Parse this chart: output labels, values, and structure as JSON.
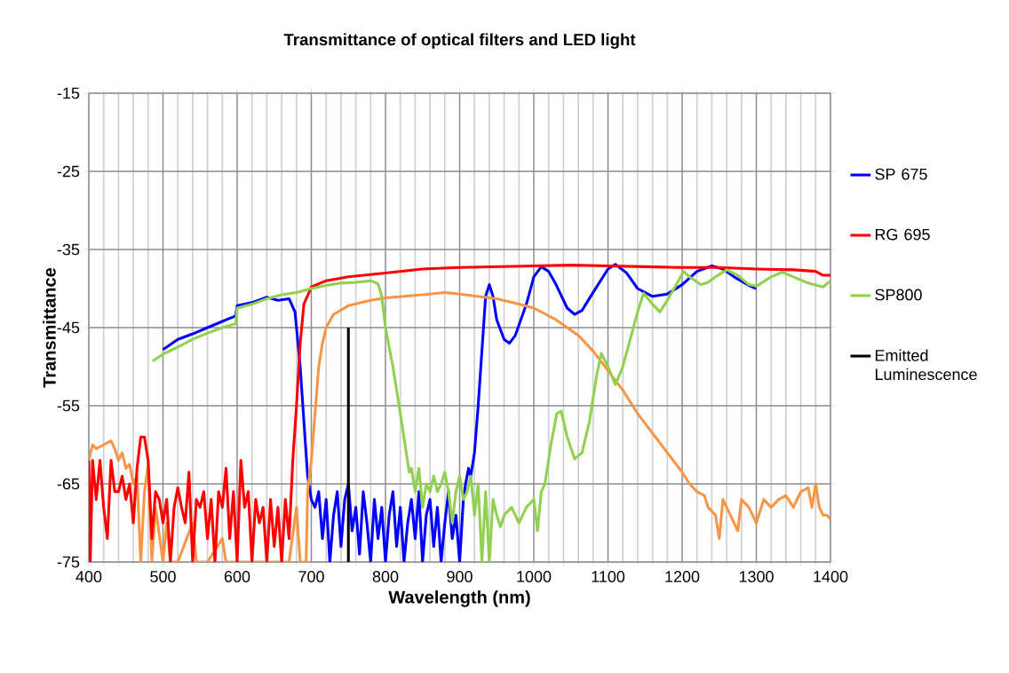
{
  "chart_data": {
    "type": "line",
    "title": "Transmittance of optical filters and LED light",
    "xlabel": "Wavelength (nm)",
    "ylabel": "Transmittance",
    "xlim": [
      400,
      1400
    ],
    "xticks": [
      400,
      500,
      600,
      700,
      800,
      900,
      1000,
      1100,
      1200,
      1300,
      1400
    ],
    "ylim": [
      -75,
      -15
    ],
    "yticks": [
      -75,
      -65,
      -55,
      -45,
      -35,
      -25,
      -15
    ],
    "grid": true,
    "legend": "right",
    "marker": "none",
    "line_style": "solid",
    "series": [
      {
        "name": "SP 675",
        "color": "#0000ff",
        "x": [
          500,
          520,
          540,
          560,
          580,
          598,
          600,
          620,
          640,
          655,
          670,
          678,
          685,
          690,
          695,
          700,
          705,
          710,
          715,
          720,
          725,
          730,
          735,
          740,
          745,
          750,
          755,
          760,
          765,
          770,
          775,
          780,
          785,
          790,
          795,
          800,
          805,
          810,
          815,
          820,
          825,
          830,
          835,
          840,
          845,
          850,
          855,
          860,
          865,
          870,
          875,
          880,
          885,
          890,
          895,
          900,
          905,
          908,
          912,
          915,
          920,
          925,
          930,
          935,
          940,
          945,
          950,
          960,
          967,
          975,
          990,
          1000,
          1010,
          1020,
          1030,
          1045,
          1055,
          1065,
          1080,
          1100,
          1110,
          1125,
          1140,
          1160,
          1180,
          1200,
          1220,
          1240,
          1255,
          1270,
          1290,
          1300
        ],
        "values": [
          -47.8,
          -46.5,
          -45.8,
          -45,
          -44.2,
          -43.5,
          -42.2,
          -41.8,
          -41.1,
          -41.5,
          -41.3,
          -43,
          -50,
          -57,
          -64,
          -67,
          -68,
          -66,
          -72,
          -67,
          -75,
          -69,
          -66,
          -73,
          -67,
          -65,
          -71,
          -68,
          -74,
          -66,
          -70,
          -75,
          -67,
          -72,
          -68,
          -75,
          -69,
          -66,
          -73,
          -68,
          -75,
          -70,
          -67,
          -72,
          -66,
          -75,
          -69,
          -67,
          -73,
          -68,
          -75,
          -70,
          -66,
          -72,
          -69,
          -75,
          -67,
          -65,
          -63,
          -64,
          -61,
          -55,
          -48,
          -41,
          -39.5,
          -41,
          -44,
          -46.5,
          -47,
          -46,
          -42,
          -38.5,
          -37.2,
          -37.8,
          -39.5,
          -42.5,
          -43.3,
          -42.8,
          -40.5,
          -37.5,
          -36.9,
          -38,
          -40,
          -41,
          -40.7,
          -39.5,
          -37.8,
          -37.1,
          -37.5,
          -38.5,
          -39.6,
          -40
        ]
      },
      {
        "color": "#f79646",
        "x": [
          400,
          405,
          410,
          420,
          430,
          435,
          440,
          445,
          450,
          455,
          460,
          465,
          470,
          475,
          480,
          485,
          490,
          500,
          505,
          510,
          520,
          540,
          545,
          560,
          580,
          585,
          610,
          630,
          650,
          670,
          680,
          685,
          693,
          695,
          700,
          705,
          710,
          715,
          720,
          730,
          750,
          780,
          800,
          850,
          880,
          900,
          950,
          980,
          1000,
          1030,
          1060,
          1080,
          1100,
          1120,
          1140,
          1160,
          1180,
          1200,
          1210,
          1220,
          1230,
          1235,
          1245,
          1250,
          1255,
          1265,
          1275,
          1280,
          1290,
          1300,
          1310,
          1320,
          1330,
          1340,
          1350,
          1360,
          1370,
          1375,
          1380,
          1385,
          1390,
          1395,
          1400
        ],
        "values": [
          -62,
          -60,
          -60.5,
          -60,
          -59.5,
          -60.5,
          -62,
          -61,
          -63,
          -62.5,
          -65,
          -64,
          -75,
          -66,
          -62.5,
          -75,
          -68,
          -75,
          -70,
          -75,
          -75,
          -70,
          -75,
          -75,
          -72,
          -75,
          -75,
          -75,
          -75,
          -75,
          -68,
          -75,
          -75,
          -66,
          -62,
          -56,
          -50,
          -47,
          -45,
          -43.3,
          -42.2,
          -41.5,
          -41.2,
          -40.8,
          -40.5,
          -40.7,
          -41.3,
          -42,
          -42.5,
          -44,
          -46,
          -48,
          -50.5,
          -53,
          -56,
          -58.5,
          -61,
          -63.5,
          -65,
          -66,
          -66.5,
          -68,
          -69,
          -72,
          -67,
          -69,
          -71,
          -67,
          -68,
          -70,
          -67,
          -68,
          -67,
          -66.5,
          -68,
          -66,
          -65.5,
          -68,
          -65,
          -68,
          -69,
          -69,
          -69.5
        ]
      },
      {
        "name": "RG 695",
        "color": "#ff0000",
        "x": [
          400,
          402,
          405,
          410,
          415,
          420,
          425,
          430,
          435,
          440,
          445,
          450,
          455,
          460,
          465,
          470,
          475,
          480,
          485,
          490,
          495,
          500,
          505,
          510,
          515,
          520,
          525,
          530,
          535,
          540,
          545,
          550,
          555,
          560,
          565,
          570,
          575,
          580,
          585,
          590,
          595,
          600,
          605,
          610,
          615,
          620,
          625,
          630,
          635,
          640,
          645,
          650,
          655,
          660,
          665,
          670,
          675,
          680,
          685,
          690,
          700,
          720,
          750,
          800,
          850,
          900,
          950,
          1000,
          1050,
          1100,
          1150,
          1200,
          1250,
          1300,
          1350,
          1380,
          1390,
          1400
        ],
        "values": [
          -62,
          -75,
          -62,
          -67,
          -62,
          -68,
          -72,
          -62,
          -66,
          -66,
          -64,
          -67,
          -65,
          -70,
          -63,
          -59,
          -59,
          -62,
          -72,
          -66,
          -67,
          -70,
          -67,
          -75,
          -68,
          -65.5,
          -68,
          -70,
          -63.5,
          -75,
          -67,
          -68,
          -66,
          -72,
          -67,
          -75,
          -66,
          -68,
          -63,
          -72,
          -66,
          -75,
          -62,
          -68,
          -66,
          -75,
          -67,
          -70,
          -68,
          -75,
          -67,
          -73,
          -68,
          -75,
          -67,
          -72,
          -62,
          -55,
          -47,
          -42,
          -39.8,
          -39,
          -38.5,
          -38,
          -37.5,
          -37.3,
          -37.2,
          -37.1,
          -37,
          -37.1,
          -37.2,
          -37.3,
          -37.3,
          -37.5,
          -37.6,
          -37.8,
          -38.3,
          -38.3
        ]
      },
      {
        "name": "SP800",
        "color": "#92d050",
        "x": [
          486,
          500,
          520,
          540,
          560,
          580,
          598,
          600,
          620,
          640,
          660,
          680,
          700,
          720,
          740,
          760,
          780,
          790,
          795,
          800,
          810,
          820,
          828,
          832,
          835,
          840,
          845,
          850,
          855,
          860,
          865,
          870,
          875,
          880,
          885,
          890,
          895,
          900,
          905,
          910,
          915,
          920,
          925,
          930,
          935,
          940,
          945,
          950,
          955,
          960,
          970,
          980,
          990,
          1000,
          1005,
          1010,
          1015,
          1023,
          1031,
          1037,
          1045,
          1055,
          1065,
          1075,
          1085,
          1091,
          1100,
          1110,
          1120,
          1130,
          1140,
          1148,
          1160,
          1170,
          1180,
          1195,
          1202,
          1210,
          1225,
          1235,
          1245,
          1260,
          1275,
          1290,
          1300,
          1320,
          1335,
          1350,
          1370,
          1390,
          1400
        ],
        "values": [
          -49.3,
          -48.4,
          -47.5,
          -46.5,
          -45.7,
          -45,
          -44.5,
          -42.5,
          -42,
          -41.3,
          -40.8,
          -40.5,
          -40,
          -39.6,
          -39.3,
          -39.2,
          -39,
          -39.4,
          -41,
          -45,
          -50,
          -56,
          -61,
          -63.5,
          -63,
          -66,
          -63,
          -68,
          -65,
          -66,
          -64,
          -66,
          -65,
          -63.5,
          -66,
          -70,
          -66,
          -64,
          -67,
          -66,
          -64,
          -69,
          -65,
          -75,
          -66,
          -75,
          -67,
          -69,
          -70.5,
          -69,
          -68,
          -70,
          -68,
          -67,
          -71,
          -66,
          -65,
          -60,
          -56,
          -55.7,
          -59,
          -61.8,
          -61,
          -57,
          -51,
          -48.3,
          -50,
          -52.3,
          -50,
          -46.5,
          -43,
          -40.6,
          -42,
          -43,
          -41.5,
          -39,
          -37.8,
          -38.5,
          -39.5,
          -39.2,
          -38.5,
          -37.6,
          -38.3,
          -39.5,
          -39.7,
          -38.5,
          -37.9,
          -38.5,
          -39.3,
          -39.8,
          -39
        ]
      },
      {
        "name": "Emitted Luminescence",
        "color": "#000000",
        "x": [
          750,
          750
        ],
        "values": [
          -75,
          -45
        ]
      }
    ]
  }
}
